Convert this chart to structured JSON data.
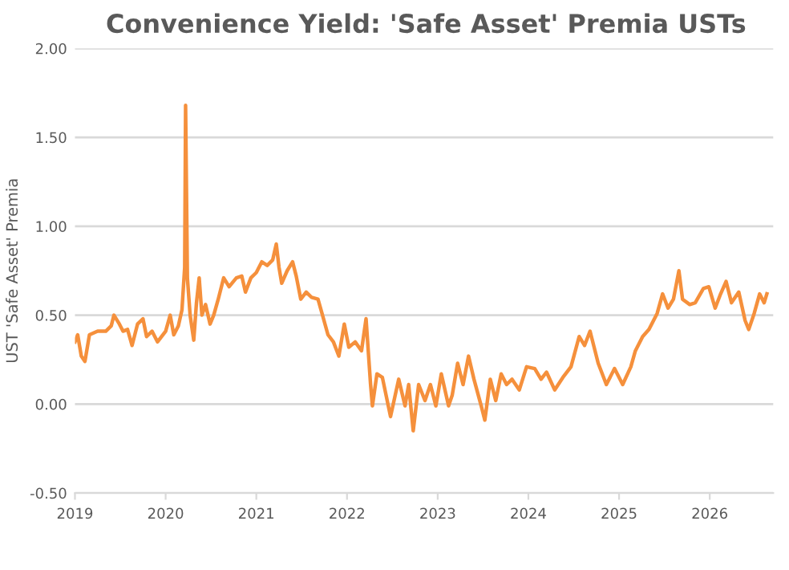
{
  "chart_data": {
    "type": "line",
    "title": "Convenience Yield: 'Safe Asset' Premia USTs",
    "ylabel": "UST 'Safe Asset' Premia",
    "xlim": [
      2019,
      2026.7
    ],
    "xticks": [
      2019,
      2020,
      2021,
      2022,
      2023,
      2024,
      2025,
      2026
    ],
    "ylim": [
      -0.5,
      2.0
    ],
    "yticks": [
      {
        "value": -0.5,
        "label": "-0.50"
      },
      {
        "value": 0,
        "label": "0.00"
      },
      {
        "value": 0.5,
        "label": "0.50"
      },
      {
        "value": 1.0,
        "label": "1.00"
      },
      {
        "value": 1.5,
        "label": "1.50"
      },
      {
        "value": 2.0,
        "label": "2.00"
      }
    ],
    "grid": "y",
    "legend": false,
    "marker": "none",
    "line_style": "solid",
    "series": [
      {
        "color": "#f5903c",
        "x": [
          2019.0,
          2019.03,
          2019.07,
          2019.11,
          2019.16,
          2019.25,
          2019.34,
          2019.4,
          2019.43,
          2019.49,
          2019.53,
          2019.58,
          2019.63,
          2019.69,
          2019.75,
          2019.79,
          2019.85,
          2019.91,
          2020.0,
          2020.05,
          2020.09,
          2020.14,
          2020.18,
          2020.21,
          2020.22,
          2020.24,
          2020.27,
          2020.31,
          2020.34,
          2020.37,
          2020.4,
          2020.44,
          2020.49,
          2020.53,
          2020.58,
          2020.64,
          2020.7,
          2020.78,
          2020.84,
          2020.88,
          2020.94,
          2021.0,
          2021.06,
          2021.12,
          2021.18,
          2021.22,
          2021.25,
          2021.28,
          2021.34,
          2021.4,
          2021.44,
          2021.49,
          2021.55,
          2021.61,
          2021.68,
          2021.73,
          2021.79,
          2021.85,
          2021.91,
          2021.97,
          2022.02,
          2022.09,
          2022.16,
          2022.21,
          2022.26,
          2022.28,
          2022.33,
          2022.39,
          2022.48,
          2022.57,
          2022.64,
          2022.68,
          2022.73,
          2022.79,
          2022.86,
          2022.92,
          2022.98,
          2023.04,
          2023.12,
          2023.16,
          2023.22,
          2023.28,
          2023.34,
          2023.4,
          2023.48,
          2023.52,
          2023.58,
          2023.64,
          2023.7,
          2023.76,
          2023.82,
          2023.9,
          2023.98,
          2024.07,
          2024.14,
          2024.2,
          2024.29,
          2024.38,
          2024.47,
          2024.56,
          2024.62,
          2024.68,
          2024.77,
          2024.86,
          2024.95,
          2025.04,
          2025.13,
          2025.18,
          2025.26,
          2025.33,
          2025.42,
          2025.48,
          2025.54,
          2025.6,
          2025.66,
          2025.7,
          2025.78,
          2025.84,
          2025.93,
          2025.99,
          2026.06,
          2026.12,
          2026.18,
          2026.24,
          2026.32,
          2026.39,
          2026.43,
          2026.49,
          2026.55,
          2026.6,
          2026.63
        ],
        "values": [
          0.35,
          0.39,
          0.27,
          0.24,
          0.39,
          0.41,
          0.41,
          0.44,
          0.5,
          0.45,
          0.41,
          0.42,
          0.33,
          0.45,
          0.48,
          0.38,
          0.41,
          0.35,
          0.41,
          0.5,
          0.39,
          0.44,
          0.53,
          0.77,
          1.68,
          0.71,
          0.5,
          0.36,
          0.57,
          0.71,
          0.5,
          0.56,
          0.45,
          0.5,
          0.59,
          0.71,
          0.66,
          0.71,
          0.72,
          0.63,
          0.71,
          0.74,
          0.8,
          0.78,
          0.81,
          0.9,
          0.77,
          0.68,
          0.75,
          0.8,
          0.72,
          0.59,
          0.63,
          0.6,
          0.59,
          0.5,
          0.39,
          0.35,
          0.27,
          0.45,
          0.32,
          0.35,
          0.3,
          0.48,
          0.11,
          -0.01,
          0.17,
          0.15,
          -0.07,
          0.14,
          -0.01,
          0.11,
          -0.15,
          0.11,
          0.02,
          0.11,
          -0.01,
          0.17,
          -0.01,
          0.05,
          0.23,
          0.11,
          0.27,
          0.14,
          -0.01,
          -0.09,
          0.14,
          0.02,
          0.17,
          0.11,
          0.14,
          0.08,
          0.21,
          0.2,
          0.14,
          0.18,
          0.08,
          0.15,
          0.21,
          0.38,
          0.33,
          0.41,
          0.23,
          0.11,
          0.2,
          0.11,
          0.21,
          0.3,
          0.38,
          0.42,
          0.51,
          0.62,
          0.54,
          0.59,
          0.75,
          0.59,
          0.56,
          0.57,
          0.65,
          0.66,
          0.54,
          0.62,
          0.69,
          0.57,
          0.63,
          0.47,
          0.42,
          0.51,
          0.62,
          0.57,
          0.62
        ]
      }
    ]
  }
}
